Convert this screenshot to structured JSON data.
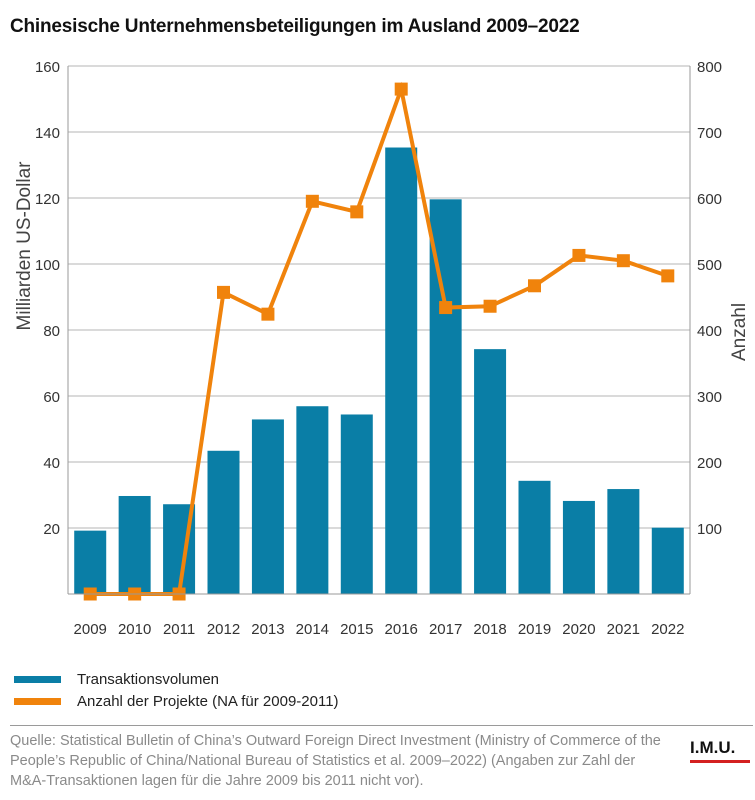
{
  "title": "Chinesische Unternehmensbeteiligungen im Ausland 2009–2022",
  "legend": {
    "bars": "Transaktionsvolumen",
    "line": "Anzahl der Projekte (NA für 2009-2011)"
  },
  "source": "Quelle: Statistical Bulletin of China’s Outward Foreign Direct Investment (Ministry of Commerce of the People’s Republic of China/National Bureau of Statistics et al. 2009–2022) (Angaben zur Zahl der M&A-Transaktionen lagen für die Jahre 2009 bis 2011 nicht vor).",
  "logo": "I.M.U.",
  "colors": {
    "bars": "#0a7ea6",
    "line": "#f0830c",
    "grid": "#b5b5b5",
    "logo_bar": "#d42020"
  },
  "chart_data": {
    "type": "bar",
    "categories": [
      "2009",
      "2010",
      "2011",
      "2012",
      "2013",
      "2014",
      "2015",
      "2016",
      "2017",
      "2018",
      "2019",
      "2020",
      "2021",
      "2022"
    ],
    "series": [
      {
        "name": "Transaktionsvolumen",
        "type": "bar",
        "axis": "left",
        "values": [
          19.2,
          29.7,
          27.2,
          43.4,
          52.9,
          56.9,
          54.4,
          135.3,
          119.6,
          74.2,
          34.3,
          28.2,
          31.8,
          20.1
        ]
      },
      {
        "name": "Anzahl der Projekte (NA für 2009-2011)",
        "type": "line",
        "axis": "right",
        "values": [
          0,
          0,
          0,
          457,
          424,
          595,
          579,
          765,
          434,
          436,
          467,
          513,
          505,
          482
        ]
      }
    ],
    "ylabel": "Milliarden US-Dollar",
    "y2label": "Anzahl",
    "ylim": [
      0,
      160
    ],
    "y2lim": [
      0,
      800
    ],
    "yticks": [
      20,
      40,
      60,
      80,
      100,
      120,
      140,
      160
    ],
    "y2ticks": [
      100,
      200,
      300,
      400,
      500,
      600,
      700,
      800
    ],
    "grid": true
  }
}
